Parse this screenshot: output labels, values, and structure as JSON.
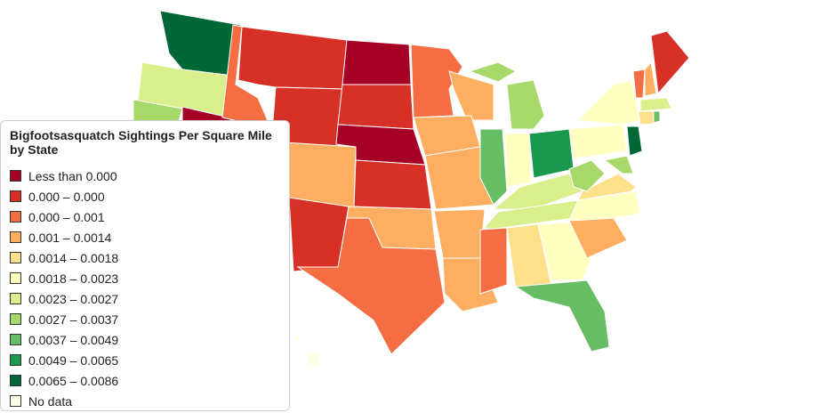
{
  "legend": {
    "title": "Bigfootsasquatch Sightings Per Square Mile by State",
    "entries": [
      {
        "label": "Less than 0.000",
        "color": "#a50026"
      },
      {
        "label": "0.000 – 0.000",
        "color": "#d73027"
      },
      {
        "label": "0.000 – 0.001",
        "color": "#f46d43"
      },
      {
        "label": "0.001 – 0.0014",
        "color": "#fdae61"
      },
      {
        "label": "0.0014 – 0.0018",
        "color": "#fee08b"
      },
      {
        "label": "0.0018 – 0.0023",
        "color": "#ffffbf"
      },
      {
        "label": "0.0023 – 0.0027",
        "color": "#d9ef8b"
      },
      {
        "label": "0.0027 – 0.0037",
        "color": "#a6d96a"
      },
      {
        "label": "0.0037 – 0.0049",
        "color": "#66bd63"
      },
      {
        "label": "0.0049 – 0.0065",
        "color": "#1a9850"
      },
      {
        "label": "0.0065 – 0.0086",
        "color": "#006837"
      },
      {
        "label": "No data",
        "color": "#fffde8"
      }
    ]
  }
}
